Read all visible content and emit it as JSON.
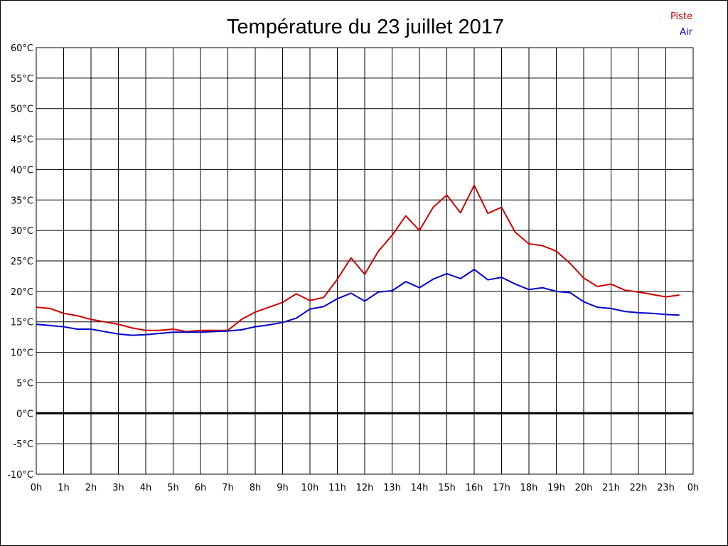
{
  "chart_data": {
    "type": "line",
    "title": "Température du 23 juillet 2017",
    "xlabel": "",
    "ylabel": "",
    "ylim": [
      -10,
      60
    ],
    "yticks": [
      -10,
      -5,
      0,
      5,
      10,
      15,
      20,
      25,
      30,
      35,
      40,
      45,
      50,
      55,
      60
    ],
    "ytick_labels": [
      "-10°C",
      "-5°C",
      "0°C",
      "5°C",
      "10°C",
      "15°C",
      "20°C",
      "25°C",
      "30°C",
      "35°C",
      "40°C",
      "45°C",
      "50°C",
      "55°C",
      "60°C"
    ],
    "xlim": [
      0,
      24
    ],
    "xticks": [
      0,
      1,
      2,
      3,
      4,
      5,
      6,
      7,
      8,
      9,
      10,
      11,
      12,
      13,
      14,
      15,
      16,
      17,
      18,
      19,
      20,
      21,
      22,
      23,
      24
    ],
    "xtick_labels": [
      "0h",
      "1h",
      "2h",
      "3h",
      "4h",
      "5h",
      "6h",
      "7h",
      "8h",
      "9h",
      "10h",
      "11h",
      "12h",
      "13h",
      "14h",
      "15h",
      "16h",
      "17h",
      "18h",
      "19h",
      "20h",
      "21h",
      "22h",
      "23h",
      "0h"
    ],
    "grid": true,
    "legend_position": "top-right",
    "zero_line": true,
    "x": [
      0,
      0.5,
      1,
      1.5,
      2,
      2.5,
      3,
      3.5,
      4,
      4.5,
      5,
      5.5,
      6,
      6.5,
      7,
      7.5,
      8,
      8.5,
      9,
      9.5,
      10,
      10.5,
      11,
      11.5,
      12,
      12.5,
      13,
      13.5,
      14,
      14.5,
      15,
      15.5,
      16,
      16.5,
      17,
      17.5,
      18,
      18.5,
      19,
      19.5,
      20,
      20.5,
      21,
      21.5,
      22,
      22.5,
      23,
      23.5
    ],
    "series": [
      {
        "name": "Piste",
        "color": "#cc0000",
        "values": [
          17.4,
          17.2,
          16.4,
          16.0,
          15.4,
          15.0,
          14.6,
          14.0,
          13.6,
          13.6,
          13.8,
          13.4,
          13.6,
          13.6,
          13.6,
          15.4,
          16.6,
          17.4,
          18.2,
          19.6,
          18.5,
          19.0,
          22.0,
          25.5,
          22.8,
          26.6,
          29.2,
          32.4,
          30.0,
          33.8,
          35.8,
          32.9,
          37.4,
          32.8,
          33.8,
          29.7,
          27.8,
          27.5,
          26.6,
          24.6,
          22.2,
          20.8,
          21.2,
          20.2,
          19.9,
          19.5,
          19.1,
          19.4
        ]
      },
      {
        "name": "Air",
        "color": "#0000cc",
        "values": [
          14.6,
          14.4,
          14.2,
          13.8,
          13.8,
          13.4,
          13.0,
          12.8,
          12.9,
          13.1,
          13.3,
          13.3,
          13.3,
          13.4,
          13.5,
          13.7,
          14.2,
          14.5,
          14.9,
          15.6,
          17.1,
          17.5,
          18.8,
          19.7,
          18.4,
          19.9,
          20.1,
          21.6,
          20.6,
          22.0,
          22.9,
          22.1,
          23.6,
          21.9,
          22.3,
          21.2,
          20.3,
          20.6,
          20.0,
          19.8,
          18.3,
          17.4,
          17.2,
          16.7,
          16.5,
          16.4,
          16.2,
          16.1
        ]
      }
    ]
  }
}
